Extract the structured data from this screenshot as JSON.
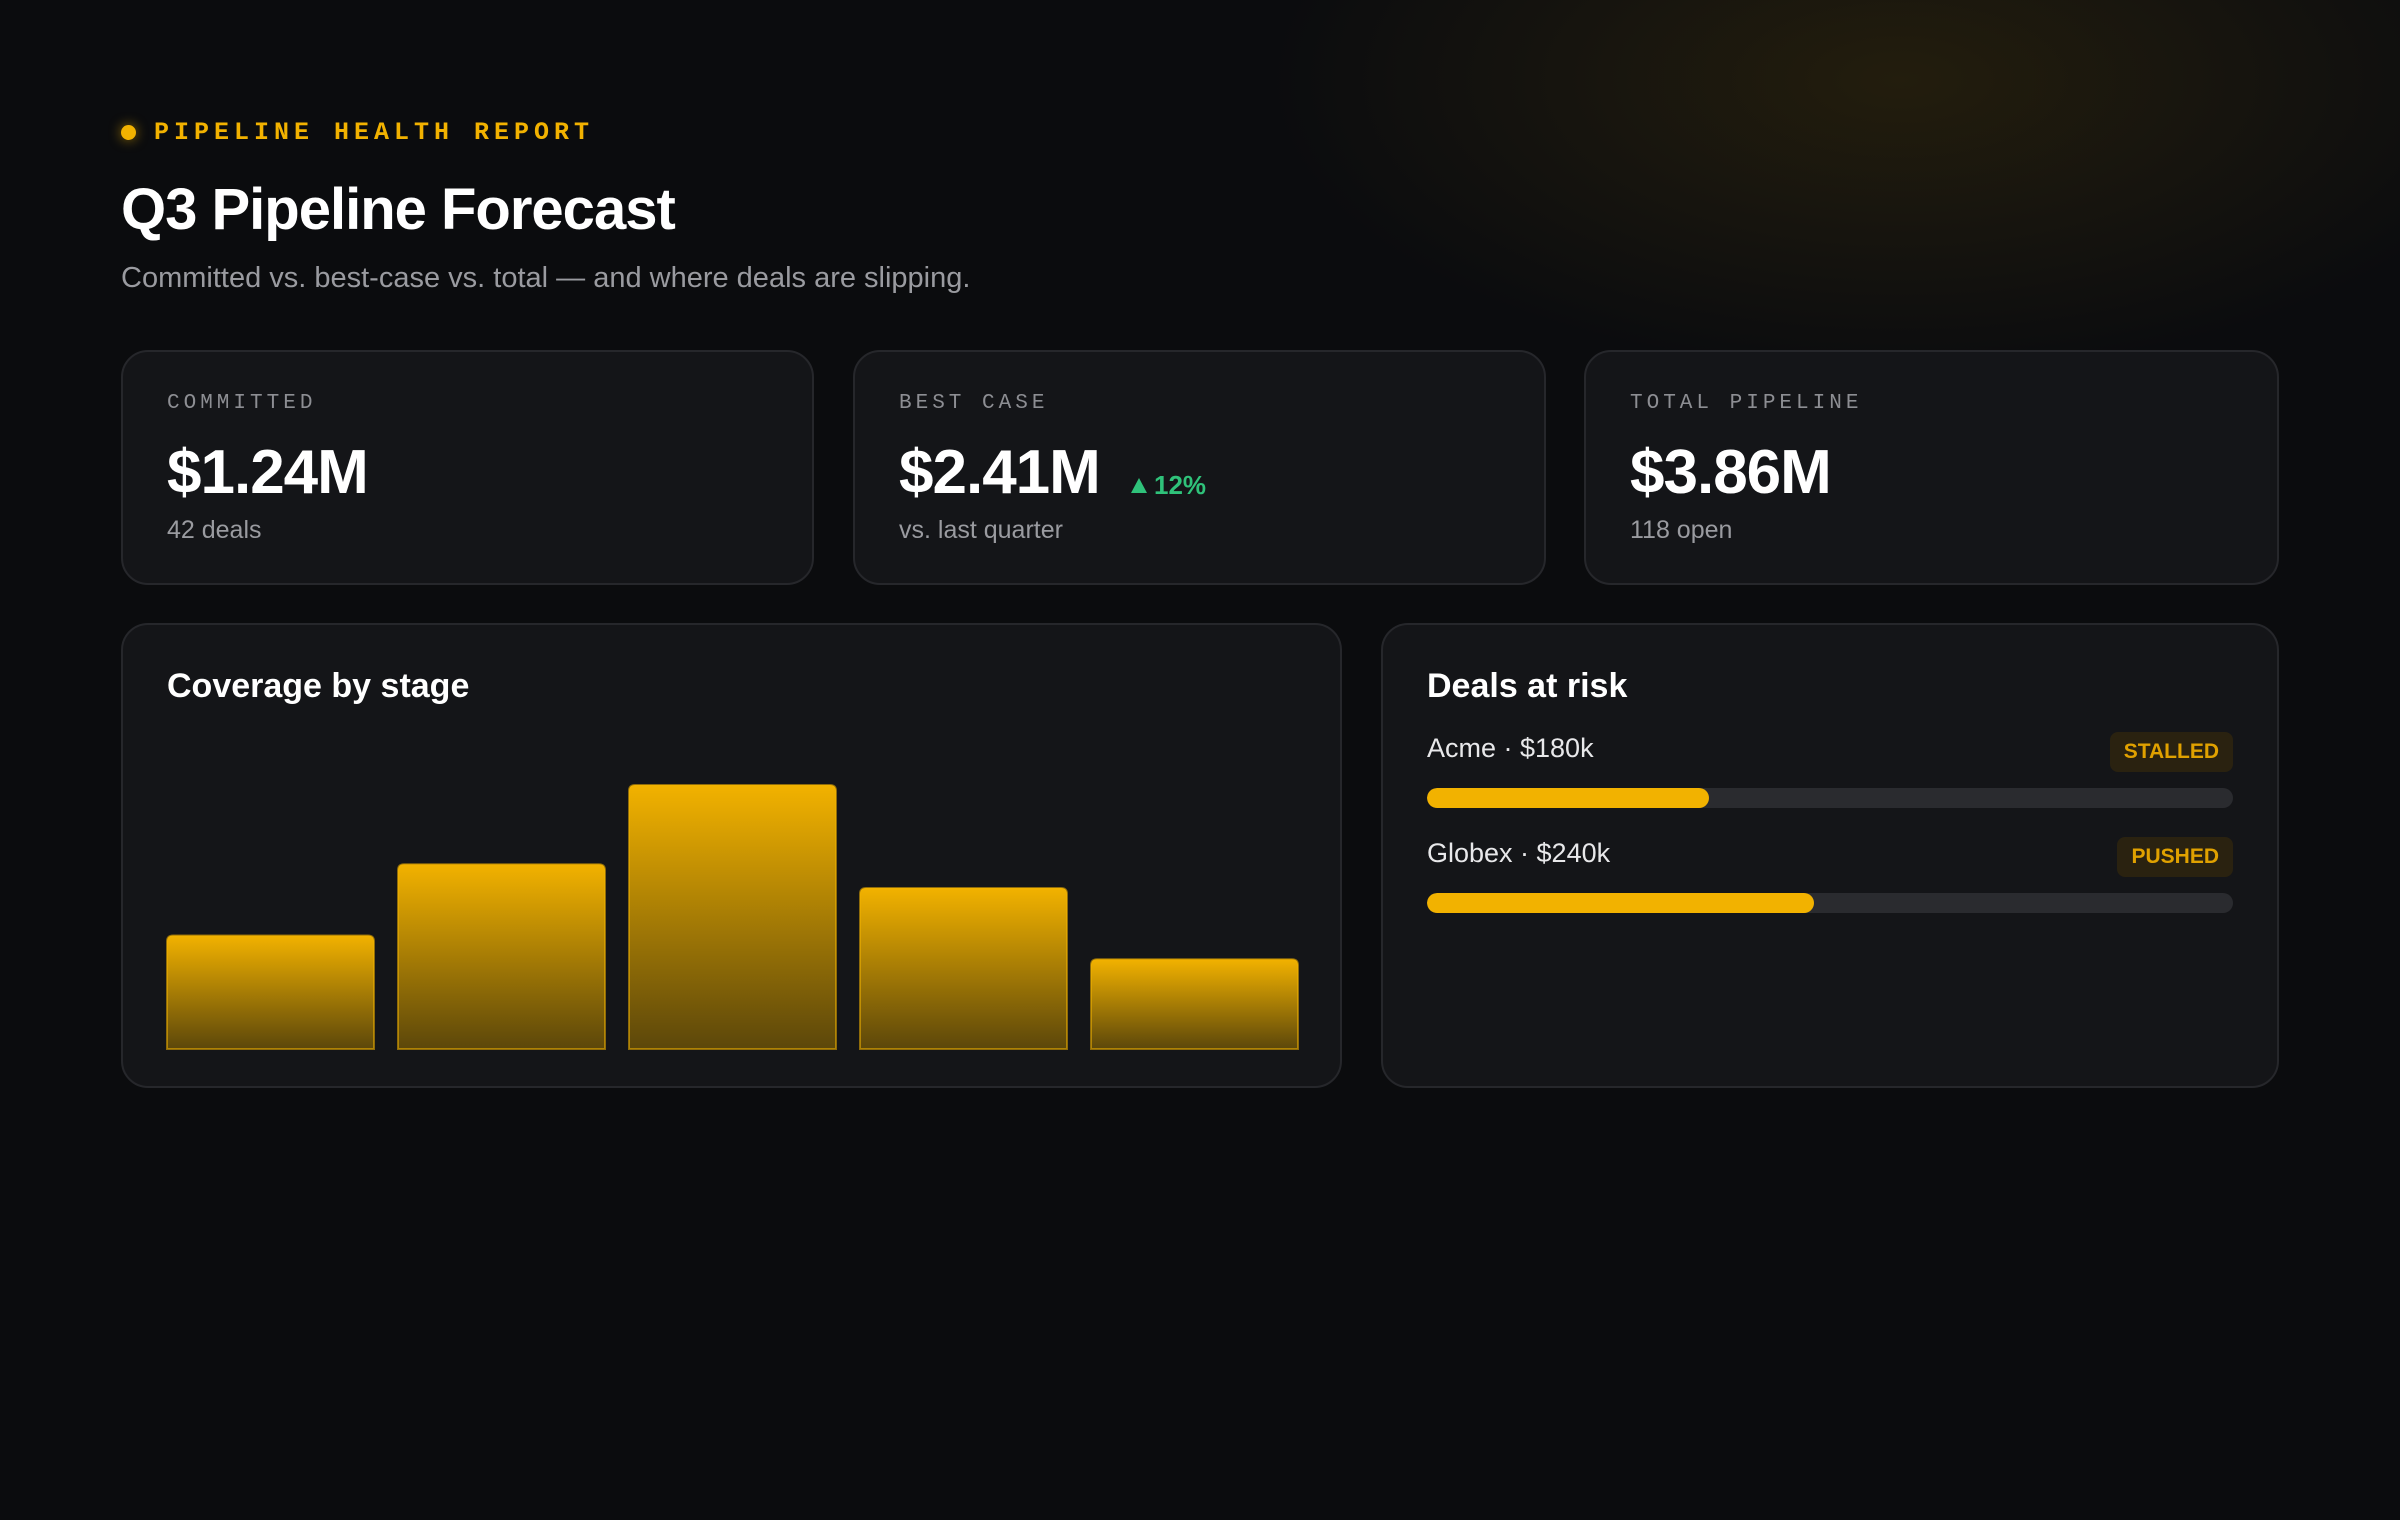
{
  "header": {
    "eyebrow": "PIPELINE HEALTH REPORT",
    "title": "Q3 Pipeline Forecast",
    "subtitle": "Committed vs. best-case vs. total — and where deals are slipping."
  },
  "kpis": [
    {
      "label": "COMMITTED",
      "value": "$1.24M",
      "note": "42 deals"
    },
    {
      "label": "BEST CASE",
      "value": "$2.41M",
      "delta": "12%",
      "note": "vs. last quarter"
    },
    {
      "label": "TOTAL PIPELINE",
      "value": "$3.86M",
      "note": "118 open"
    }
  ],
  "chart_data": {
    "type": "bar",
    "title": "Coverage by stage",
    "categories": [
      null,
      null,
      null,
      null,
      null
    ],
    "values": [
      43,
      70,
      100,
      61,
      34
    ],
    "ylim": [
      0,
      100
    ],
    "color": "#f2b200"
  },
  "risks": {
    "title": "Deals at risk",
    "xlim": [
      0,
      100
    ],
    "items": [
      {
        "label": "Acme · $180k",
        "status": "STALLED",
        "progress": 35
      },
      {
        "label": "Globex · $240k",
        "status": "PUSHED",
        "progress": 48
      }
    ]
  }
}
